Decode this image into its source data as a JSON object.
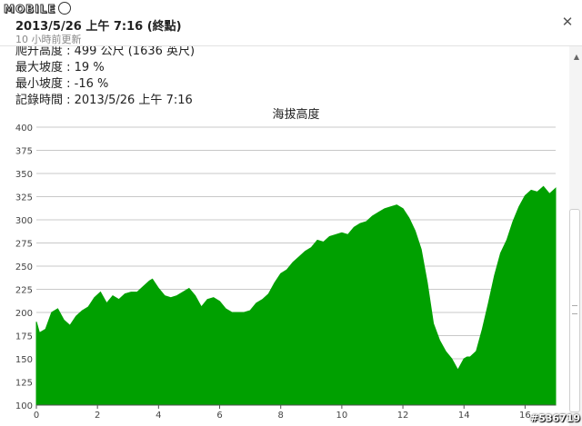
{
  "logo": {
    "text": "MOBILE"
  },
  "header": {
    "title": "2013/5/26 上午 7:16 (終點)",
    "subtitle": "10 小時前更新",
    "close_icon": "close-icon"
  },
  "info": {
    "climb": "爬升高度 : 499 公尺 (1636 英尺)",
    "max_slope": "最大坡度 : 19 %",
    "min_slope": "最小坡度 : -16 %",
    "record_time": "記錄時間 : 2013/5/26 上午 7:16"
  },
  "watermark": "#536719",
  "chart_data": {
    "type": "area",
    "title": "海拔高度",
    "xlabel": "",
    "ylabel": "",
    "xlim": [
      0,
      17
    ],
    "ylim": [
      100,
      400
    ],
    "x_ticks": [
      0,
      2,
      4,
      6,
      8,
      10,
      12,
      14,
      16
    ],
    "y_ticks": [
      100,
      125,
      150,
      175,
      200,
      225,
      250,
      275,
      300,
      325,
      350,
      375,
      400
    ],
    "grid": true,
    "color": "#00a000",
    "series": [
      {
        "x": [
          0,
          0.1,
          0.3,
          0.5,
          0.7,
          0.9,
          1.1,
          1.3,
          1.5,
          1.7,
          1.9,
          2.1,
          2.3,
          2.5,
          2.7,
          2.9,
          3.1,
          3.3,
          3.5,
          3.7,
          3.8,
          4.0,
          4.2,
          4.4,
          4.6,
          4.8,
          5.0,
          5.2,
          5.4,
          5.6,
          5.8,
          6.0,
          6.2,
          6.4,
          6.6,
          6.8,
          7.0,
          7.2,
          7.4,
          7.6,
          7.8,
          8.0,
          8.2,
          8.4,
          8.6,
          8.8,
          9.0,
          9.2,
          9.4,
          9.6,
          9.8,
          10.0,
          10.2,
          10.4,
          10.6,
          10.8,
          11.0,
          11.2,
          11.4,
          11.6,
          11.8,
          12.0,
          12.2,
          12.4,
          12.6,
          12.8,
          13.0,
          13.2,
          13.4,
          13.6,
          13.8,
          14.0,
          14.1,
          14.2,
          14.4,
          14.6,
          14.8,
          15.0,
          15.2,
          15.4,
          15.6,
          15.8,
          16.0,
          16.2,
          16.4,
          16.6,
          16.8,
          17.0
        ],
        "values": [
          190,
          178,
          182,
          200,
          204,
          192,
          186,
          196,
          202,
          206,
          216,
          222,
          210,
          218,
          214,
          220,
          222,
          222,
          228,
          234,
          236,
          226,
          218,
          216,
          218,
          222,
          226,
          218,
          206,
          214,
          216,
          212,
          204,
          200,
          200,
          200,
          202,
          210,
          214,
          220,
          232,
          242,
          246,
          254,
          260,
          266,
          270,
          278,
          276,
          282,
          284,
          286,
          284,
          292,
          296,
          298,
          304,
          308,
          312,
          314,
          316,
          312,
          302,
          288,
          268,
          232,
          188,
          170,
          158,
          150,
          138,
          150,
          152,
          152,
          158,
          182,
          210,
          240,
          264,
          278,
          298,
          314,
          326,
          332,
          330,
          336,
          328,
          334
        ]
      }
    ]
  }
}
